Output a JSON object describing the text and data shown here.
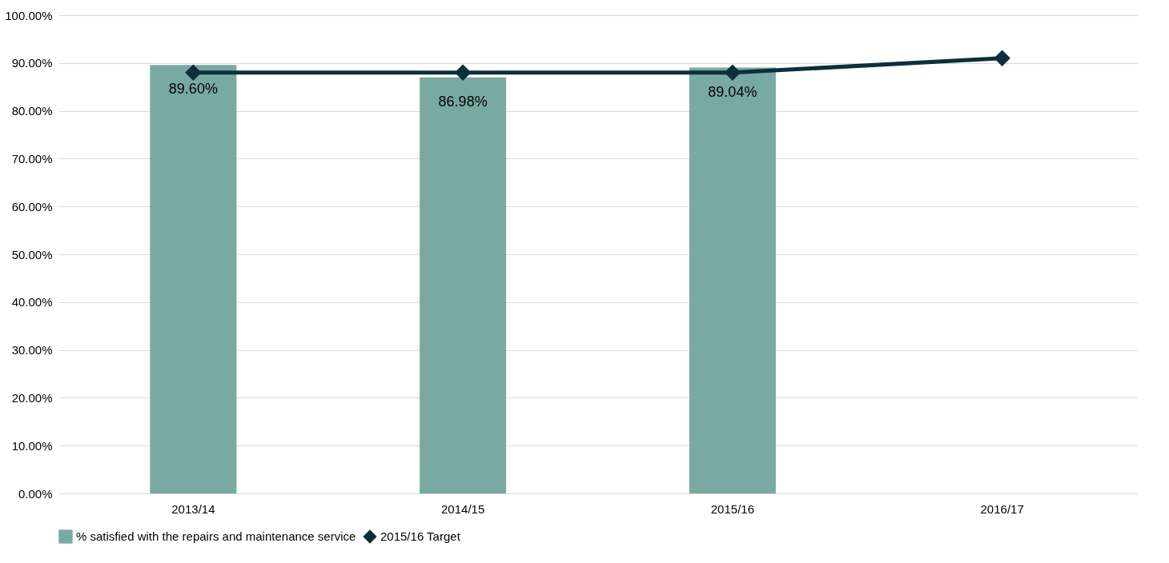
{
  "chart_data": {
    "type": "bar",
    "categories": [
      "2013/14",
      "2014/15",
      "2015/16",
      "2016/17"
    ],
    "series": [
      {
        "name": "% satisfied with the repairs and maintenance service",
        "color": "#78a9a3",
        "values": [
          89.6,
          86.98,
          89.04,
          null
        ],
        "value_labels": [
          "89.60%",
          "86.98%",
          "89.04%",
          null
        ]
      },
      {
        "name": "2015/16 Target",
        "type": "line",
        "color": "#0d2f3a",
        "values": [
          88,
          88,
          88,
          91
        ],
        "marker": "diamond"
      }
    ],
    "ylim": [
      0,
      100
    ],
    "yticks": [
      {
        "value": 0,
        "label": "0.00%"
      },
      {
        "value": 10,
        "label": "10.00%"
      },
      {
        "value": 20,
        "label": "20.00%"
      },
      {
        "value": 30,
        "label": "30.00%"
      },
      {
        "value": 40,
        "label": "40.00%"
      },
      {
        "value": 50,
        "label": "50.00%"
      },
      {
        "value": 60,
        "label": "60.00%"
      },
      {
        "value": 70,
        "label": "70.00%"
      },
      {
        "value": 80,
        "label": "80.00%"
      },
      {
        "value": 90,
        "label": "90.00%"
      },
      {
        "value": 100,
        "label": "100.00%"
      }
    ],
    "grid": "y",
    "legend": "bottom"
  }
}
